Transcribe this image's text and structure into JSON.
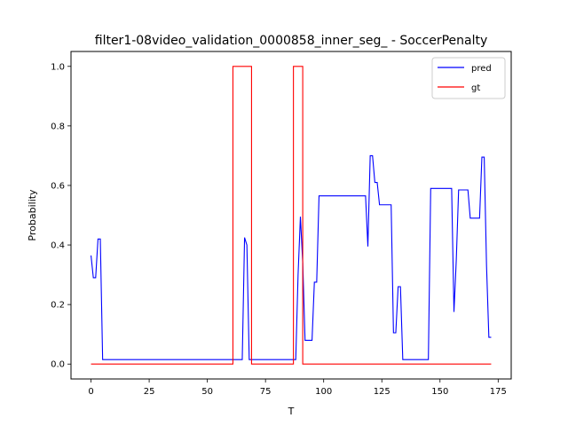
{
  "chart_data": {
    "type": "line",
    "title": "filter1-08video_validation_0000858_inner_seg_ - SoccerPenalty",
    "xlabel": "T",
    "ylabel": "Probability",
    "xlim": [
      -8.6,
      180.6
    ],
    "ylim": [
      -0.05,
      1.05
    ],
    "xticks": [
      0,
      25,
      50,
      75,
      100,
      125,
      150,
      175
    ],
    "yticks": [
      0.0,
      0.2,
      0.4,
      0.6,
      0.8,
      1.0
    ],
    "ytick_labels": [
      "0.0",
      "0.2",
      "0.4",
      "0.6",
      "0.8",
      "1.0"
    ],
    "grid": false,
    "legend_position": "top-right",
    "series": [
      {
        "name": "pred",
        "color": "#0000ff",
        "x": [
          0,
          1,
          2,
          3,
          4,
          5,
          65,
          66,
          67,
          68,
          88,
          89,
          90,
          91,
          92,
          93,
          94,
          95,
          96,
          97,
          98,
          99,
          118,
          119,
          120,
          121,
          122,
          123,
          124,
          125,
          126,
          127,
          128,
          129,
          130,
          131,
          132,
          133,
          134,
          135,
          145,
          146,
          155,
          156,
          157,
          158,
          162,
          163,
          167,
          168,
          169,
          170,
          171,
          172
        ],
        "y": [
          0.365,
          0.29,
          0.29,
          0.42,
          0.42,
          0.015,
          0.015,
          0.425,
          0.4,
          0.015,
          0.015,
          0.3,
          0.495,
          0.34,
          0.08,
          0.08,
          0.08,
          0.08,
          0.275,
          0.275,
          0.565,
          0.565,
          0.565,
          0.395,
          0.7,
          0.7,
          0.61,
          0.61,
          0.535,
          0.535,
          0.535,
          0.535,
          0.535,
          0.535,
          0.105,
          0.105,
          0.26,
          0.26,
          0.015,
          0.015,
          0.015,
          0.59,
          0.59,
          0.175,
          0.35,
          0.585,
          0.585,
          0.49,
          0.49,
          0.695,
          0.695,
          0.33,
          0.09,
          0.09
        ]
      },
      {
        "name": "gt",
        "color": "#ff0000",
        "x": [
          0,
          61,
          61,
          69,
          69,
          87,
          87,
          91,
          91,
          172
        ],
        "y": [
          0,
          0,
          1,
          1,
          0,
          0,
          1,
          1,
          0,
          0
        ]
      }
    ]
  }
}
